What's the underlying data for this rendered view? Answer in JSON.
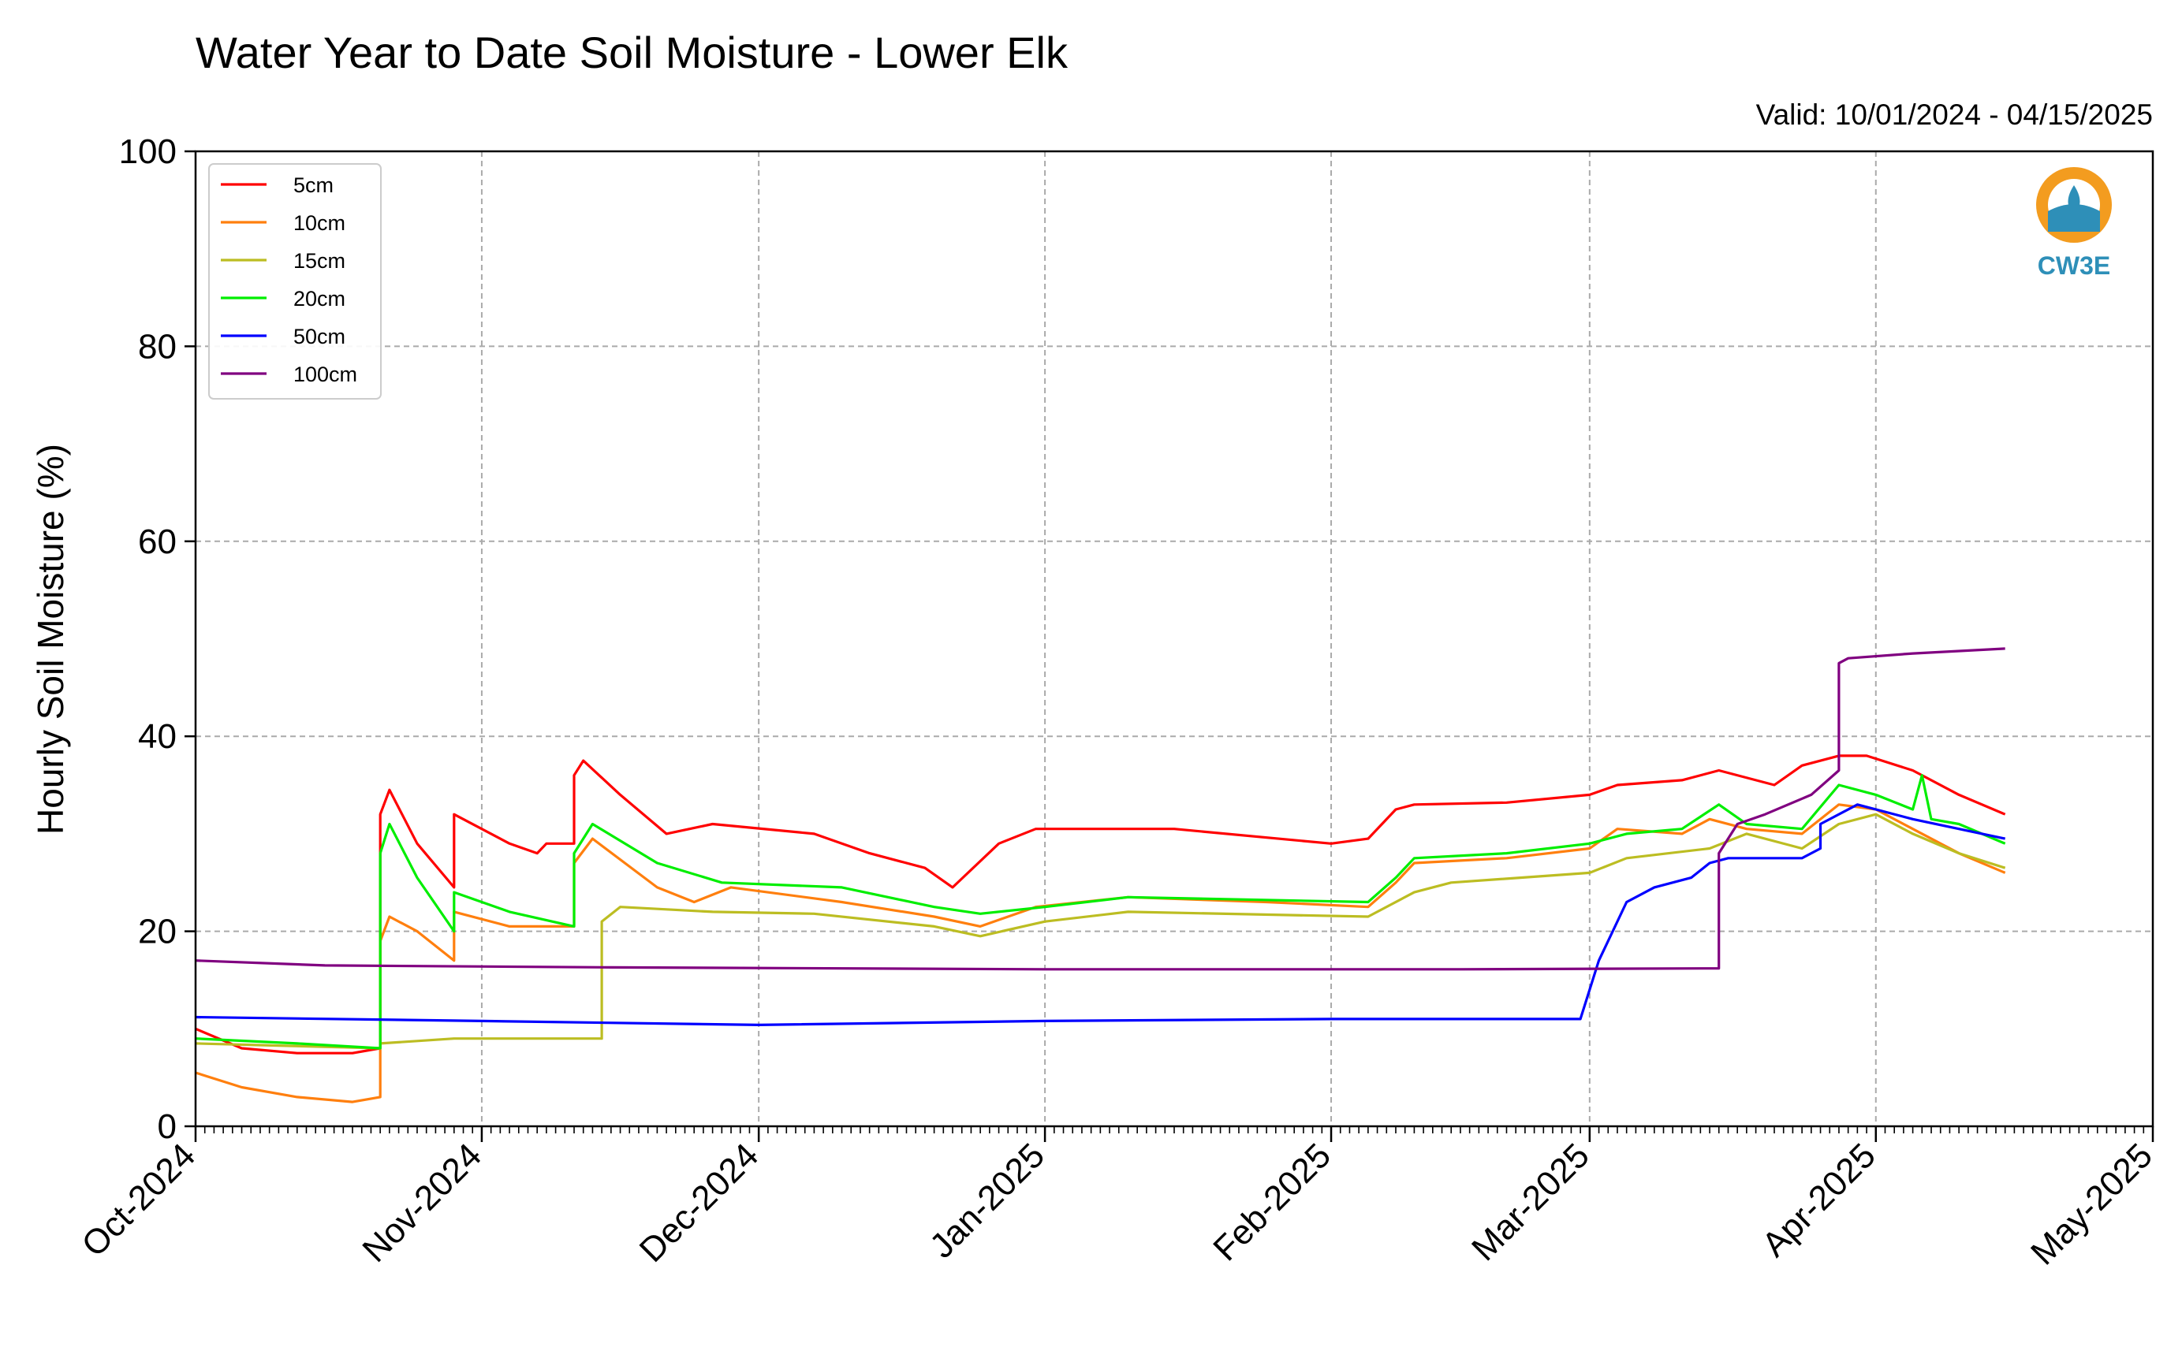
{
  "chart_data": {
    "type": "line",
    "title": "Water Year to Date Soil Moisture - Lower Elk",
    "valid_label": "Valid: 10/01/2024 - 04/15/2025",
    "ylabel": "Hourly Soil Moisture (%)",
    "xlabel": "",
    "ylim": [
      0,
      100
    ],
    "yticks": [
      0,
      20,
      40,
      60,
      80,
      100
    ],
    "xlim": [
      "2024-10-01",
      "2025-05-01"
    ],
    "xticks": [
      {
        "date": "2024-10-01",
        "label": "Oct-2024"
      },
      {
        "date": "2024-11-01",
        "label": "Nov-2024"
      },
      {
        "date": "2024-12-01",
        "label": "Dec-2024"
      },
      {
        "date": "2025-01-01",
        "label": "Jan-2025"
      },
      {
        "date": "2025-02-01",
        "label": "Feb-2025"
      },
      {
        "date": "2025-03-01",
        "label": "Mar-2025"
      },
      {
        "date": "2025-04-01",
        "label": "Apr-2025"
      },
      {
        "date": "2025-05-01",
        "label": "May-2025"
      }
    ],
    "grid": true,
    "legend_position": "top-left",
    "logo_text": "CW3E",
    "series": [
      {
        "name": "5cm",
        "color": "#ff0000",
        "points": [
          [
            "2024-10-01",
            10
          ],
          [
            "2024-10-06",
            8
          ],
          [
            "2024-10-12",
            7.5
          ],
          [
            "2024-10-18",
            7.5
          ],
          [
            "2024-10-21",
            8
          ],
          [
            "2024-10-21",
            32
          ],
          [
            "2024-10-22",
            34.5
          ],
          [
            "2024-10-25",
            29
          ],
          [
            "2024-10-29",
            24.5
          ],
          [
            "2024-10-29",
            32
          ],
          [
            "2024-11-04",
            29
          ],
          [
            "2024-11-07",
            28
          ],
          [
            "2024-11-08",
            29
          ],
          [
            "2024-11-11",
            29
          ],
          [
            "2024-11-11",
            36
          ],
          [
            "2024-11-12",
            37.5
          ],
          [
            "2024-11-16",
            34
          ],
          [
            "2024-11-21",
            30
          ],
          [
            "2024-11-26",
            31
          ],
          [
            "2024-12-07",
            30
          ],
          [
            "2024-12-13",
            28
          ],
          [
            "2024-12-19",
            26.5
          ],
          [
            "2024-12-22",
            24.5
          ],
          [
            "2024-12-27",
            29
          ],
          [
            "2024-12-31",
            30.5
          ],
          [
            "2025-01-15",
            30.5
          ],
          [
            "2025-02-01",
            29
          ],
          [
            "2025-02-05",
            29.5
          ],
          [
            "2025-02-08",
            32.5
          ],
          [
            "2025-02-10",
            33
          ],
          [
            "2025-02-20",
            33.2
          ],
          [
            "2025-03-01",
            34
          ],
          [
            "2025-03-04",
            35
          ],
          [
            "2025-03-11",
            35.5
          ],
          [
            "2025-03-15",
            36.5
          ],
          [
            "2025-03-21",
            35
          ],
          [
            "2025-03-24",
            37
          ],
          [
            "2025-03-28",
            38
          ],
          [
            "2025-03-31",
            38
          ],
          [
            "2025-04-05",
            36.5
          ],
          [
            "2025-04-10",
            34
          ],
          [
            "2025-04-15",
            32
          ]
        ]
      },
      {
        "name": "10cm",
        "color": "#ff7f0e",
        "points": [
          [
            "2024-10-01",
            5.5
          ],
          [
            "2024-10-06",
            4
          ],
          [
            "2024-10-12",
            3
          ],
          [
            "2024-10-18",
            2.5
          ],
          [
            "2024-10-21",
            3
          ],
          [
            "2024-10-21",
            19
          ],
          [
            "2024-10-22",
            21.5
          ],
          [
            "2024-10-25",
            20
          ],
          [
            "2024-10-29",
            17
          ],
          [
            "2024-10-29",
            22
          ],
          [
            "2024-11-04",
            20.5
          ],
          [
            "2024-11-11",
            20.5
          ],
          [
            "2024-11-11",
            27
          ],
          [
            "2024-11-13",
            29.5
          ],
          [
            "2024-11-20",
            24.5
          ],
          [
            "2024-11-24",
            23
          ],
          [
            "2024-11-28",
            24.5
          ],
          [
            "2024-12-10",
            23
          ],
          [
            "2024-12-20",
            21.5
          ],
          [
            "2024-12-25",
            20.5
          ],
          [
            "2024-12-31",
            22.5
          ],
          [
            "2025-01-10",
            23.5
          ],
          [
            "2025-01-25",
            23
          ],
          [
            "2025-02-05",
            22.5
          ],
          [
            "2025-02-08",
            25
          ],
          [
            "2025-02-10",
            27
          ],
          [
            "2025-02-20",
            27.5
          ],
          [
            "2025-03-01",
            28.5
          ],
          [
            "2025-03-04",
            30.5
          ],
          [
            "2025-03-11",
            30
          ],
          [
            "2025-03-14",
            31.5
          ],
          [
            "2025-03-18",
            30.5
          ],
          [
            "2025-03-24",
            30
          ],
          [
            "2025-03-28",
            33
          ],
          [
            "2025-04-01",
            32.5
          ],
          [
            "2025-04-05",
            30.5
          ],
          [
            "2025-04-10",
            28
          ],
          [
            "2025-04-15",
            26
          ]
        ]
      },
      {
        "name": "15cm",
        "color": "#bcbd22",
        "points": [
          [
            "2024-10-01",
            8.5
          ],
          [
            "2024-10-21",
            8
          ],
          [
            "2024-10-21",
            8.5
          ],
          [
            "2024-10-29",
            9
          ],
          [
            "2024-11-14",
            9
          ],
          [
            "2024-11-14",
            21
          ],
          [
            "2024-11-16",
            22.5
          ],
          [
            "2024-11-26",
            22
          ],
          [
            "2024-12-07",
            21.8
          ],
          [
            "2024-12-20",
            20.5
          ],
          [
            "2024-12-25",
            19.5
          ],
          [
            "2025-01-01",
            21
          ],
          [
            "2025-01-10",
            22
          ],
          [
            "2025-02-05",
            21.5
          ],
          [
            "2025-02-10",
            24
          ],
          [
            "2025-02-14",
            25
          ],
          [
            "2025-03-01",
            26
          ],
          [
            "2025-03-05",
            27.5
          ],
          [
            "2025-03-14",
            28.5
          ],
          [
            "2025-03-18",
            30
          ],
          [
            "2025-03-24",
            28.5
          ],
          [
            "2025-03-28",
            31
          ],
          [
            "2025-04-01",
            32
          ],
          [
            "2025-04-05",
            30
          ],
          [
            "2025-04-10",
            28
          ],
          [
            "2025-04-15",
            26.5
          ]
        ]
      },
      {
        "name": "20cm",
        "color": "#00ee00",
        "points": [
          [
            "2024-10-01",
            9
          ],
          [
            "2024-10-12",
            8.5
          ],
          [
            "2024-10-21",
            8
          ],
          [
            "2024-10-21",
            28
          ],
          [
            "2024-10-22",
            31
          ],
          [
            "2024-10-25",
            25.5
          ],
          [
            "2024-10-29",
            20
          ],
          [
            "2024-10-29",
            24
          ],
          [
            "2024-11-04",
            22
          ],
          [
            "2024-11-11",
            20.5
          ],
          [
            "2024-11-11",
            28
          ],
          [
            "2024-11-13",
            31
          ],
          [
            "2024-11-20",
            27
          ],
          [
            "2024-11-27",
            25
          ],
          [
            "2024-12-10",
            24.5
          ],
          [
            "2024-12-20",
            22.5
          ],
          [
            "2024-12-25",
            21.8
          ],
          [
            "2025-01-01",
            22.5
          ],
          [
            "2025-01-10",
            23.5
          ],
          [
            "2025-02-05",
            23
          ],
          [
            "2025-02-08",
            25.5
          ],
          [
            "2025-02-10",
            27.5
          ],
          [
            "2025-02-20",
            28
          ],
          [
            "2025-03-01",
            29
          ],
          [
            "2025-03-05",
            30
          ],
          [
            "2025-03-11",
            30.5
          ],
          [
            "2025-03-15",
            33
          ],
          [
            "2025-03-18",
            31
          ],
          [
            "2025-03-24",
            30.5
          ],
          [
            "2025-03-28",
            35
          ],
          [
            "2025-04-01",
            34
          ],
          [
            "2025-04-05",
            32.5
          ],
          [
            "2025-04-06",
            36
          ],
          [
            "2025-04-07",
            31.5
          ],
          [
            "2025-04-10",
            31
          ],
          [
            "2025-04-15",
            29
          ]
        ]
      },
      {
        "name": "50cm",
        "color": "#0000ff",
        "points": [
          [
            "2024-10-01",
            11.2
          ],
          [
            "2024-11-01",
            10.8
          ],
          [
            "2024-12-01",
            10.4
          ],
          [
            "2025-01-01",
            10.8
          ],
          [
            "2025-02-01",
            11
          ],
          [
            "2025-02-28",
            11
          ],
          [
            "2025-03-02",
            17
          ],
          [
            "2025-03-05",
            23
          ],
          [
            "2025-03-08",
            24.5
          ],
          [
            "2025-03-12",
            25.5
          ],
          [
            "2025-03-14",
            27
          ],
          [
            "2025-03-16",
            27.5
          ],
          [
            "2025-03-24",
            27.5
          ],
          [
            "2025-03-26",
            28.5
          ],
          [
            "2025-03-26",
            31
          ],
          [
            "2025-03-30",
            33
          ],
          [
            "2025-04-05",
            31.5
          ],
          [
            "2025-04-10",
            30.5
          ],
          [
            "2025-04-15",
            29.5
          ]
        ]
      },
      {
        "name": "100cm",
        "color": "#800080",
        "points": [
          [
            "2024-10-01",
            17
          ],
          [
            "2024-10-15",
            16.5
          ],
          [
            "2024-11-15",
            16.3
          ],
          [
            "2025-01-01",
            16.1
          ],
          [
            "2025-02-15",
            16.1
          ],
          [
            "2025-03-15",
            16.2
          ],
          [
            "2025-03-15",
            28
          ],
          [
            "2025-03-17",
            31
          ],
          [
            "2025-03-20",
            32
          ],
          [
            "2025-03-25",
            34
          ],
          [
            "2025-03-28",
            36.5
          ],
          [
            "2025-03-28",
            47.5
          ],
          [
            "2025-03-29",
            48
          ],
          [
            "2025-04-05",
            48.5
          ],
          [
            "2025-04-15",
            49
          ]
        ]
      }
    ]
  }
}
